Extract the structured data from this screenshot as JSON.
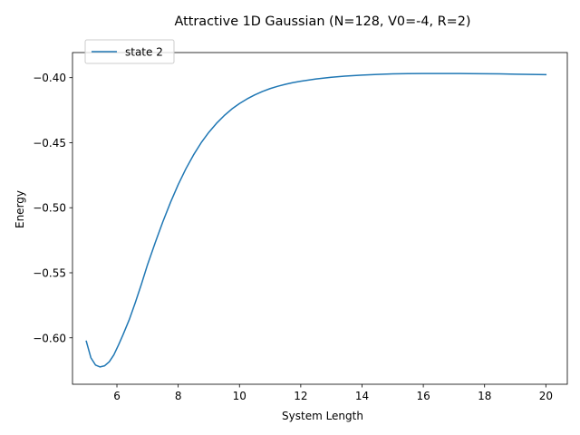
{
  "chart_data": {
    "type": "line",
    "title": "Attractive 1D Gaussian (N=128, V0=-4, R=2)",
    "xlabel": "System Length",
    "ylabel": "Energy",
    "xlim": [
      4.55,
      20.7
    ],
    "ylim": [
      -0.6357,
      -0.3807
    ],
    "xticks": [
      6,
      8,
      10,
      12,
      14,
      16,
      18,
      20
    ],
    "xtick_labels": [
      "6",
      "8",
      "10",
      "12",
      "14",
      "16",
      "18",
      "20"
    ],
    "yticks": [
      -0.6,
      -0.55,
      -0.5,
      -0.45,
      -0.4
    ],
    "ytick_labels": [
      "−0.60",
      "−0.55",
      "−0.50",
      "−0.45",
      "−0.40"
    ],
    "grid": false,
    "legend": "upper-left",
    "series": [
      {
        "name": "state 2",
        "color": "#1f77b4",
        "x": [
          5.0,
          5.15,
          5.3,
          5.45,
          5.6,
          5.75,
          5.9,
          6.05,
          6.2,
          6.4,
          6.6,
          6.8,
          7.0,
          7.25,
          7.5,
          7.75,
          8.0,
          8.25,
          8.5,
          8.75,
          9.0,
          9.25,
          9.5,
          9.75,
          10.0,
          10.25,
          10.5,
          10.75,
          11.0,
          11.25,
          11.5,
          11.75,
          12.0,
          12.5,
          13.0,
          13.5,
          14.0,
          14.5,
          15.0,
          15.5,
          16.0,
          16.5,
          17.0,
          17.5,
          18.0,
          18.5,
          19.0,
          19.5,
          20.0
        ],
        "y": [
          -0.6026,
          -0.6153,
          -0.6209,
          -0.6224,
          -0.6215,
          -0.6184,
          -0.6131,
          -0.6056,
          -0.5976,
          -0.5862,
          -0.5729,
          -0.5587,
          -0.5437,
          -0.5268,
          -0.5107,
          -0.4958,
          -0.4822,
          -0.4701,
          -0.4594,
          -0.45,
          -0.442,
          -0.4351,
          -0.4292,
          -0.4241,
          -0.4199,
          -0.4163,
          -0.4132,
          -0.4106,
          -0.4084,
          -0.4066,
          -0.4051,
          -0.4038,
          -0.4027,
          -0.401,
          -0.3997,
          -0.3987,
          -0.398,
          -0.3975,
          -0.3971,
          -0.3969,
          -0.3968,
          -0.3968,
          -0.3968,
          -0.3969,
          -0.397,
          -0.3971,
          -0.3973,
          -0.3975,
          -0.3977
        ]
      }
    ]
  }
}
